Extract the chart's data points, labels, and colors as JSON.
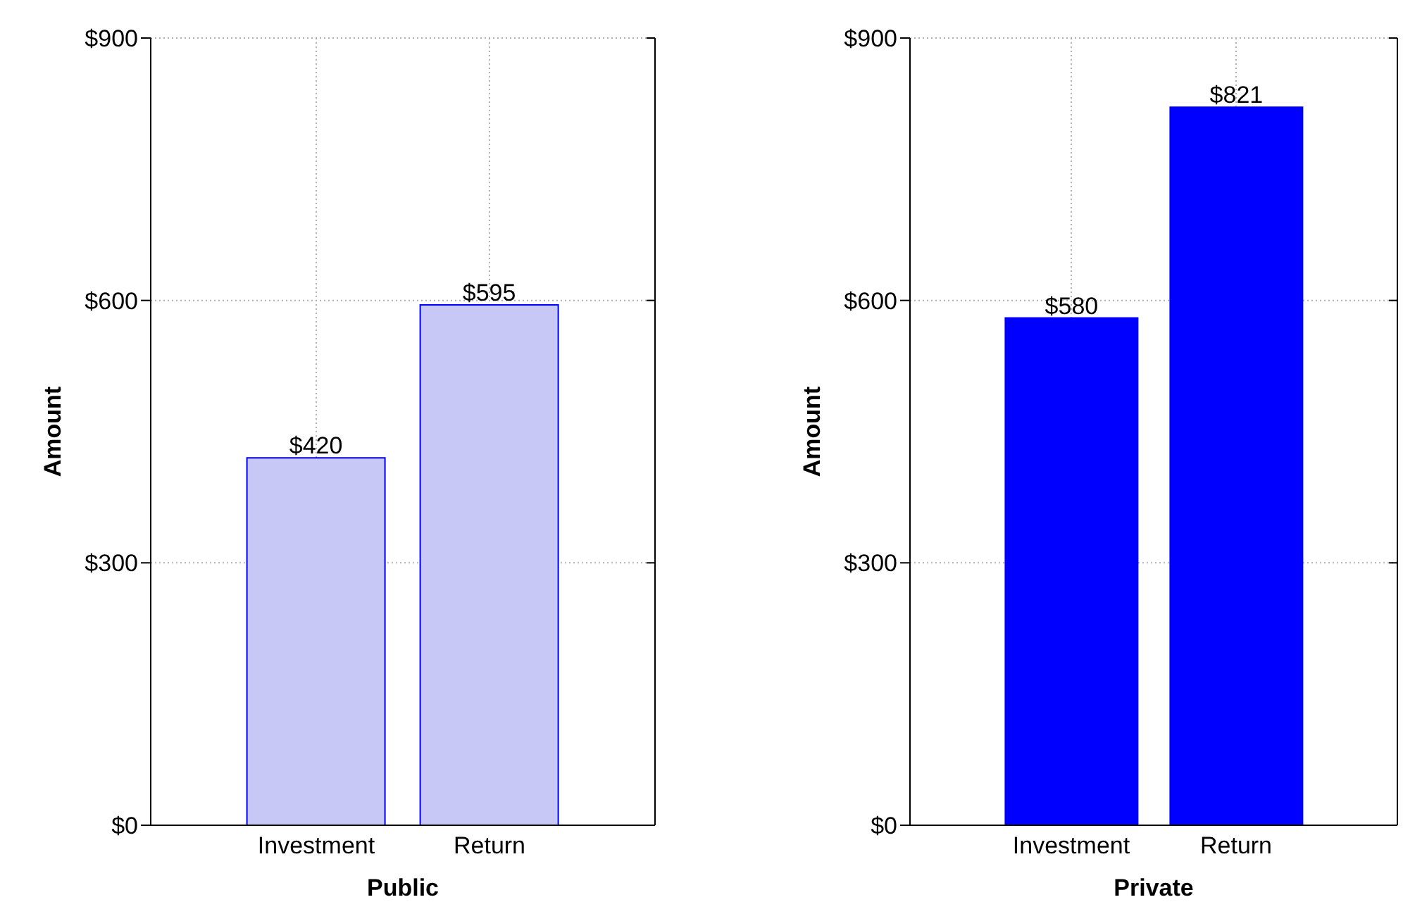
{
  "chart_data": [
    {
      "type": "bar",
      "categories": [
        "Investment",
        "Return"
      ],
      "values": [
        420,
        595
      ],
      "color": "#c8c8f6",
      "value_labels": [
        "$420",
        "$595"
      ],
      "xlabel": "Public",
      "ylabel": "Amount",
      "ylim": [
        0,
        900
      ],
      "yticks": [
        {
          "value": 0,
          "label": "$0"
        },
        {
          "value": 300,
          "label": "$300"
        },
        {
          "value": 600,
          "label": "$600"
        },
        {
          "value": 900,
          "label": "$900"
        }
      ],
      "grid": true
    },
    {
      "type": "bar",
      "categories": [
        "Investment",
        "Return"
      ],
      "values": [
        580,
        821
      ],
      "color": "#0000ff",
      "value_labels": [
        "$580",
        "$821"
      ],
      "xlabel": "Private",
      "ylabel": "Amount",
      "ylim": [
        0,
        900
      ],
      "yticks": [
        {
          "value": 0,
          "label": "$0"
        },
        {
          "value": 300,
          "label": "$300"
        },
        {
          "value": 600,
          "label": "$600"
        },
        {
          "value": 900,
          "label": "$900"
        }
      ],
      "grid": true
    }
  ]
}
